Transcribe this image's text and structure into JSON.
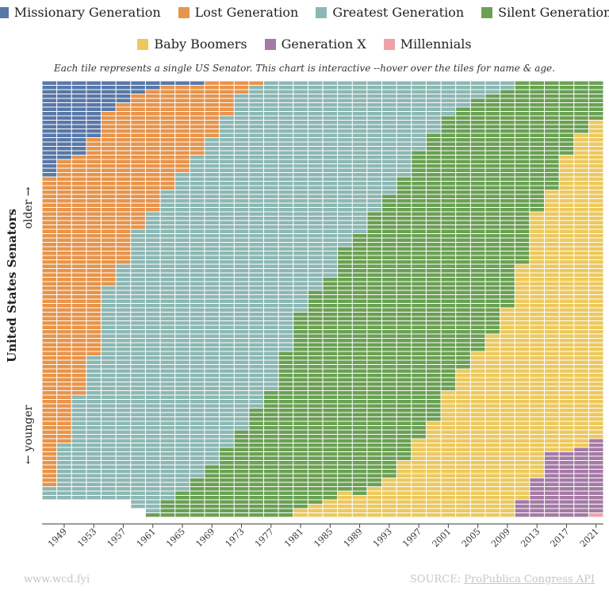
{
  "legend": [
    {
      "name": "Missionary Generation",
      "color": "#5878a8"
    },
    {
      "name": "Lost Generation",
      "color": "#e8944a"
    },
    {
      "name": "Greatest Generation",
      "color": "#8cb8b4"
    },
    {
      "name": "Silent Generation",
      "color": "#6aa153"
    },
    {
      "name": "Baby Boomers",
      "color": "#ecc85e"
    },
    {
      "name": "Generation X",
      "color": "#a57aa6"
    },
    {
      "name": "Millennials",
      "color": "#f2a0a8"
    }
  ],
  "subtitle": "Each tile represents a single US Senator. This chart is interactive --hover over the tiles for name & age.",
  "footer": {
    "site": "www.wcd.fyi",
    "source_prefix": "SOURCE: ",
    "source_link": "ProPublica Congress API"
  },
  "chart_data": {
    "type": "bar",
    "ylabel": "United States Senators",
    "older_label": "older →",
    "younger_label": "← younger",
    "series_order": [
      "Missionary Generation",
      "Lost Generation",
      "Greatest Generation",
      "Silent Generation",
      "Baby Boomers",
      "Generation X",
      "Millennials"
    ],
    "categories": [
      "1947",
      "1949",
      "1951",
      "1953",
      "1955",
      "1957",
      "1959",
      "1961",
      "1963",
      "1965",
      "1967",
      "1969",
      "1971",
      "1973",
      "1975",
      "1977",
      "1979",
      "1981",
      "1983",
      "1985",
      "1987",
      "1989",
      "1991",
      "1993",
      "1995",
      "1997",
      "1999",
      "2001",
      "2003",
      "2005",
      "2007",
      "2009",
      "2011",
      "2013",
      "2015",
      "2017",
      "2019",
      "2021"
    ],
    "tick_labels": [
      "1949",
      "1953",
      "1957",
      "1961",
      "1965",
      "1969",
      "1973",
      "1977",
      "1981",
      "1985",
      "1989",
      "1993",
      "1997",
      "2001",
      "2005",
      "2009",
      "2013",
      "2017",
      "2021"
    ],
    "counts": [
      [
        22,
        71,
        3,
        0,
        0,
        0,
        0
      ],
      [
        18,
        65,
        13,
        0,
        0,
        0,
        0
      ],
      [
        17,
        55,
        24,
        0,
        0,
        0,
        0
      ],
      [
        13,
        50,
        33,
        0,
        0,
        0,
        0
      ],
      [
        7,
        40,
        49,
        0,
        0,
        0,
        0
      ],
      [
        5,
        37,
        54,
        0,
        0,
        0,
        0
      ],
      [
        3,
        31,
        64,
        0,
        0,
        0,
        0
      ],
      [
        2,
        28,
        69,
        1,
        0,
        0,
        0
      ],
      [
        1,
        24,
        71,
        4,
        0,
        0,
        0
      ],
      [
        1,
        20,
        73,
        6,
        0,
        0,
        0
      ],
      [
        1,
        16,
        74,
        9,
        0,
        0,
        0
      ],
      [
        0,
        13,
        75,
        12,
        0,
        0,
        0
      ],
      [
        0,
        8,
        76,
        16,
        0,
        0,
        0
      ],
      [
        0,
        3,
        77,
        20,
        0,
        0,
        0
      ],
      [
        0,
        1,
        74,
        25,
        0,
        0,
        0
      ],
      [
        0,
        0,
        71,
        29,
        0,
        0,
        0
      ],
      [
        0,
        0,
        62,
        38,
        0,
        0,
        0
      ],
      [
        0,
        0,
        53,
        45,
        2,
        0,
        0
      ],
      [
        0,
        0,
        48,
        49,
        3,
        0,
        0
      ],
      [
        0,
        0,
        45,
        51,
        4,
        0,
        0
      ],
      [
        0,
        0,
        38,
        56,
        6,
        0,
        0
      ],
      [
        0,
        0,
        35,
        60,
        5,
        0,
        0
      ],
      [
        0,
        0,
        30,
        63,
        7,
        0,
        0
      ],
      [
        0,
        0,
        26,
        65,
        9,
        0,
        0
      ],
      [
        0,
        0,
        22,
        65,
        13,
        0,
        0
      ],
      [
        0,
        0,
        16,
        66,
        18,
        0,
        0
      ],
      [
        0,
        0,
        12,
        66,
        22,
        0,
        0
      ],
      [
        0,
        0,
        8,
        63,
        29,
        0,
        0
      ],
      [
        0,
        0,
        6,
        60,
        34,
        0,
        0
      ],
      [
        0,
        0,
        4,
        58,
        38,
        0,
        0
      ],
      [
        0,
        0,
        3,
        55,
        42,
        0,
        0
      ],
      [
        0,
        0,
        2,
        50,
        48,
        0,
        0
      ],
      [
        0,
        0,
        0,
        42,
        54,
        4,
        0
      ],
      [
        0,
        0,
        0,
        30,
        61,
        9,
        0
      ],
      [
        0,
        0,
        0,
        25,
        60,
        15,
        0
      ],
      [
        0,
        0,
        0,
        17,
        68,
        15,
        0
      ],
      [
        0,
        0,
        0,
        12,
        72,
        16,
        0
      ],
      [
        0,
        0,
        0,
        9,
        73,
        17,
        1
      ]
    ]
  }
}
